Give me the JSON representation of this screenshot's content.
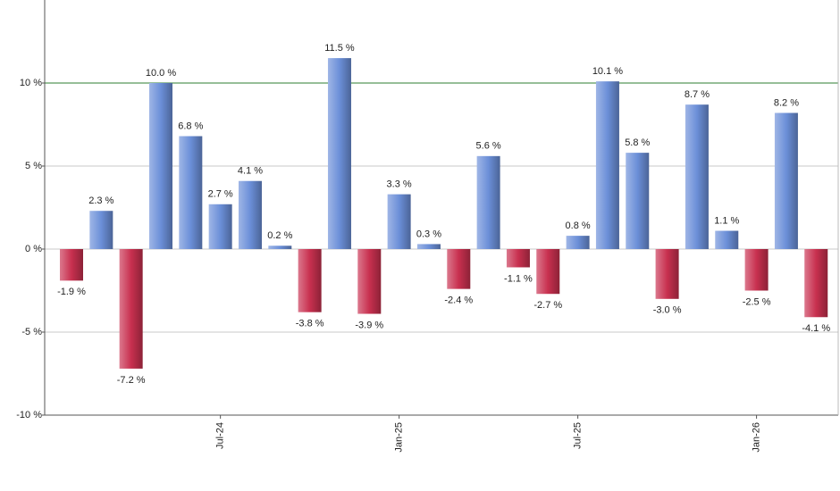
{
  "chart_data": {
    "type": "bar",
    "categories": [
      null,
      null,
      null,
      null,
      null,
      "Jul-24",
      null,
      null,
      null,
      null,
      null,
      "Jan-25",
      null,
      null,
      null,
      null,
      null,
      "Jul-25",
      null,
      null,
      null,
      null,
      null,
      "Jan-26",
      null,
      null
    ],
    "values": [
      -1.9,
      2.3,
      -7.2,
      10.0,
      6.8,
      2.7,
      4.1,
      0.2,
      -3.8,
      11.5,
      -3.9,
      3.3,
      0.3,
      -2.4,
      5.6,
      -1.1,
      -2.7,
      0.8,
      10.1,
      5.8,
      -3.0,
      8.7,
      1.1,
      -2.5,
      8.2,
      -4.1
    ],
    "value_labels": [
      "-1.9 %",
      "2.3 %",
      "-7.2 %",
      "10.0 %",
      "6.8 %",
      "2.7 %",
      "4.1 %",
      "0.2 %",
      "-3.8 %",
      "11.5 %",
      "-3.9 %",
      "3.3 %",
      "0.3 %",
      "-2.4 %",
      "5.6 %",
      "-1.1 %",
      "-2.7 %",
      "0.8 %",
      "10.1 %",
      "5.8 %",
      "-3.0 %",
      "8.7 %",
      "1.1 %",
      "-2.5 %",
      "8.2 %",
      "-4.1 %"
    ],
    "positive_color": "#6b8fd8",
    "negative_color": "#c8304f",
    "ylim": [
      -10,
      15
    ],
    "yticks": [
      {
        "value": -10,
        "label": "-10 %"
      },
      {
        "value": -5,
        "label": "-5 %"
      },
      {
        "value": 0,
        "label": "0 %"
      },
      {
        "value": 5,
        "label": "5 %"
      },
      {
        "value": 10,
        "label": "10 %"
      }
    ],
    "grid": true,
    "reference_line": 10,
    "reference_color": "#2e7d32"
  }
}
